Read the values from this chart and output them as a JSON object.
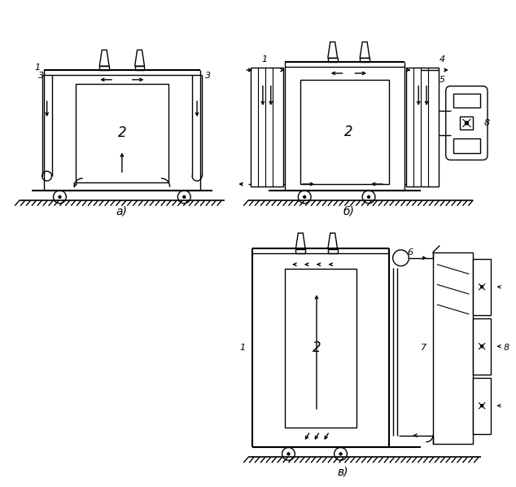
{
  "bg_color": "#ffffff",
  "line_color": "#000000",
  "label_a": "а)",
  "label_b": "б)",
  "label_v": "в)",
  "fig_w": 6.34,
  "fig_h": 5.98,
  "dpi": 100
}
